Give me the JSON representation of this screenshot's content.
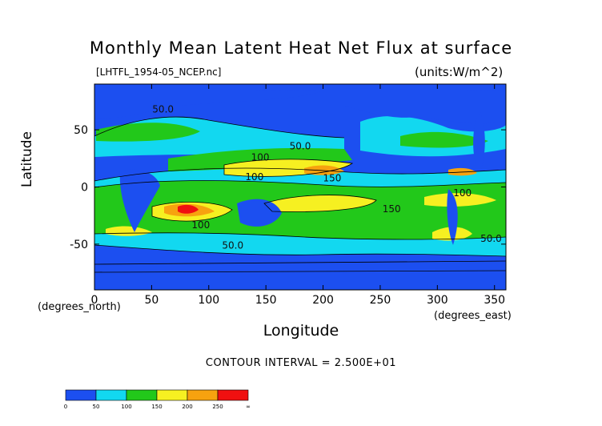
{
  "title": "Monthly Mean Latent Heat Net Flux at surface",
  "file_label": "[LHTFL_1954-05_NCEP.nc]",
  "units_label": "(units:W/m^2)",
  "interval_text": "CONTOUR INTERVAL = 2.500E+01",
  "chart_data": {
    "type": "heatmap",
    "title": "Monthly Mean Latent Heat Net Flux at surface",
    "xlabel": "Longitude",
    "ylabel": "Latitude",
    "x_unit_label": "(degrees_east)",
    "y_unit_label": "(degrees_north)",
    "xlim": [
      0,
      360
    ],
    "ylim": [
      -90,
      90
    ],
    "x_ticks": [
      0,
      50,
      100,
      150,
      200,
      250,
      300,
      350
    ],
    "y_ticks": [
      -50,
      0,
      50
    ],
    "contour_labels": [
      {
        "text": "50.0",
        "x": 60,
        "y": 65
      },
      {
        "text": "50.0",
        "x": 180,
        "y": 33
      },
      {
        "text": "100",
        "x": 145,
        "y": 23
      },
      {
        "text": "100",
        "x": 140,
        "y": 6
      },
      {
        "text": "150",
        "x": 208,
        "y": 5
      },
      {
        "text": "100",
        "x": 322,
        "y": -8
      },
      {
        "text": "150",
        "x": 260,
        "y": -22
      },
      {
        "text": "100",
        "x": 93,
        "y": -36
      },
      {
        "text": "50.0",
        "x": 121,
        "y": -54
      },
      {
        "text": "50.0",
        "x": 347,
        "y": -48
      }
    ],
    "colorbar": {
      "ticks": [
        "0",
        "50",
        "100",
        "150",
        "200",
        "250",
        "∞"
      ],
      "colors": [
        "#1c4ff0",
        "#12d8f0",
        "#22c81a",
        "#f6f021",
        "#f7a20f",
        "#f01010"
      ]
    }
  }
}
